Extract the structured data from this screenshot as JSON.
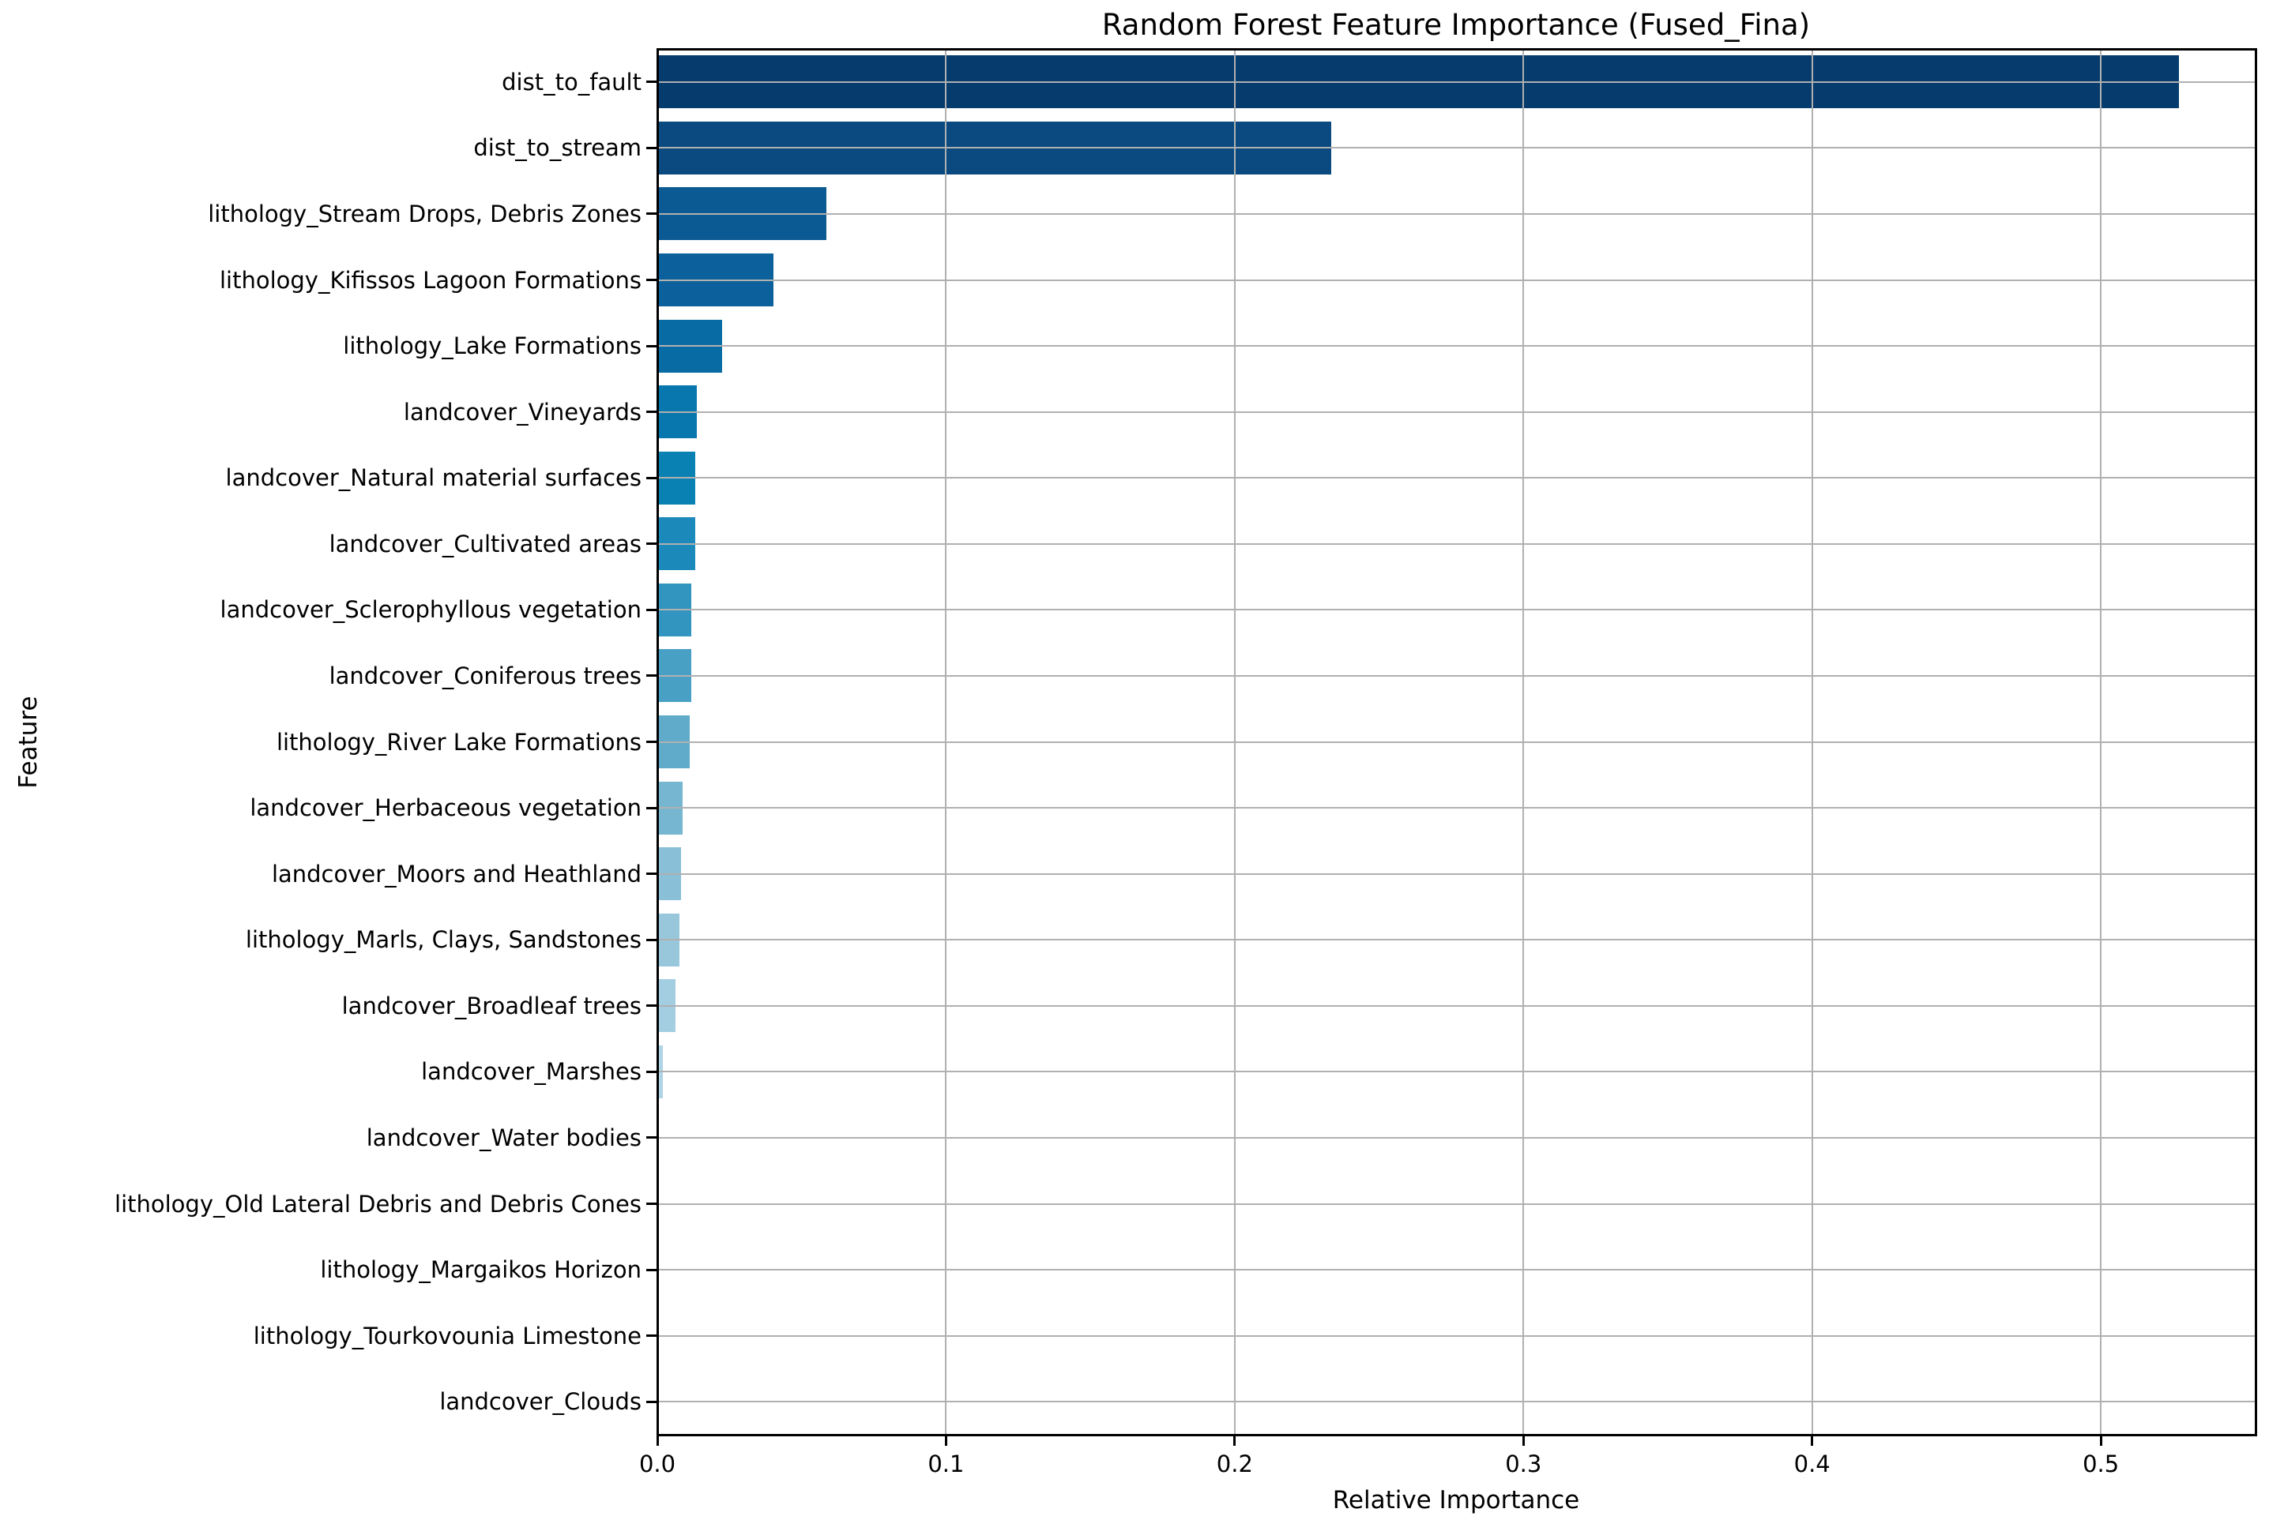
{
  "chart_data": {
    "type": "bar",
    "orientation": "horizontal",
    "title": "Random Forest Feature Importance (Fused_Fina)",
    "xlabel": "Relative Importance",
    "ylabel": "Feature",
    "xlim": [
      0,
      0.5536
    ],
    "x_ticks": [
      0.0,
      0.1,
      0.2,
      0.3,
      0.4,
      0.5
    ],
    "x_tick_labels": [
      "0.0",
      "0.1",
      "0.2",
      "0.3",
      "0.4",
      "0.5"
    ],
    "grid": true,
    "grid_color": "#b0b0b0",
    "background_color": "#ffffff",
    "categories": [
      "dist_to_fault",
      "dist_to_stream",
      "lithology_Stream Drops, Debris Zones",
      "lithology_Kifissos Lagoon Formations",
      "lithology_Lake Formations",
      "landcover_Vineyards",
      "landcover_Natural material surfaces",
      "landcover_Cultivated areas",
      "landcover_Sclerophyllous vegetation",
      "landcover_Coniferous trees",
      "lithology_River Lake Formations",
      "landcover_Herbaceous vegetation",
      "landcover_Moors and Heathland",
      "lithology_Marls, Clays, Sandstones",
      "landcover_Broadleaf trees",
      "landcover_Marshes",
      "landcover_Water bodies",
      "lithology_Old Lateral Debris and Debris Cones",
      "lithology_Margaikos Horizon",
      "lithology_Tourkovounia Limestone",
      "landcover_Clouds"
    ],
    "values": [
      0.527,
      0.2334,
      0.0586,
      0.0403,
      0.0225,
      0.0138,
      0.0131,
      0.013,
      0.0119,
      0.0118,
      0.0112,
      0.0088,
      0.0082,
      0.0077,
      0.0062,
      0.0018,
      0.0005,
      0.0003,
      0.0002,
      0.0001,
      5e-05
    ],
    "bar_colors": [
      "#063b6d",
      "#0a4a80",
      "#0c5a93",
      "#0c619c",
      "#096ba4",
      "#0777ad",
      "#0a81b3",
      "#1b8aba",
      "#3295bf",
      "#49a0c5",
      "#60abca",
      "#77b6d0",
      "#89bfd7",
      "#98c7dc",
      "#a3cde1",
      "#aed4e6",
      "#b6d9e9",
      "#bfdeec",
      "#c8e3ef",
      "#d1e7f1",
      "#daecf4"
    ]
  }
}
